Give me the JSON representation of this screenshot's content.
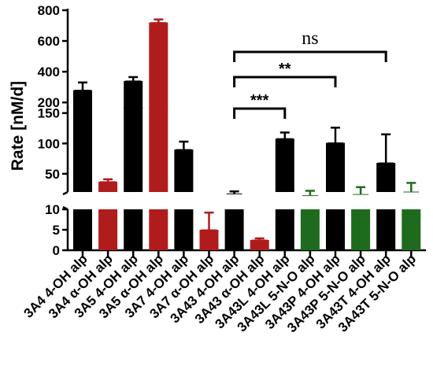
{
  "chart_data": {
    "type": "bar",
    "ylabel": "Rate [nM/d]",
    "categories": [
      "3A4 4-OH alp",
      "3A4 α-OH alp",
      "3A5 4-OH alp",
      "3A5 α-OH alp",
      "3A7 4-OH alp",
      "3A7 α-OH alp",
      "3A43 4-OH alp",
      "3A43 α-OH alp",
      "3A43L 4-OH alp",
      "3A43L 5-N-O alp",
      "3A43P 4-OH alp",
      "3A43P 5-N-O alp",
      "3A43T 4-OH alp",
      "3A43T 5-N-O alp"
    ],
    "values": [
      280,
      37,
      340,
      720,
      90,
      5,
      17,
      2.5,
      108,
      14,
      101,
      16,
      68,
      20
    ],
    "errors": [
      50,
      4,
      25,
      20,
      13,
      4.2,
      4,
      0.4,
      10,
      8,
      25,
      12,
      47,
      15
    ],
    "colors": [
      "#000000",
      "#b01c1c",
      "#000000",
      "#b01c1c",
      "#000000",
      "#b01c1c",
      "#000000",
      "#b01c1c",
      "#000000",
      "#1e6b1e",
      "#000000",
      "#1e6b1e",
      "#000000",
      "#1e6b1e"
    ],
    "y_axis_segments": [
      {
        "range": [
          0,
          10
        ],
        "ticks": [
          "0",
          "5",
          "10"
        ]
      },
      {
        "range": [
          20,
          160
        ],
        "ticks": [
          "50",
          "100",
          "150"
        ]
      },
      {
        "range": [
          160,
          800
        ],
        "ticks": [
          "200",
          "400",
          "600",
          "800"
        ]
      }
    ],
    "significance": [
      {
        "from": "3A43 4-OH alp",
        "to": "3A43L 4-OH alp",
        "label": "***"
      },
      {
        "from": "3A43 4-OH alp",
        "to": "3A43P 4-OH alp",
        "label": "**"
      },
      {
        "from": "3A43 4-OH alp",
        "to": "3A43T 4-OH alp",
        "label": "ns"
      }
    ]
  }
}
